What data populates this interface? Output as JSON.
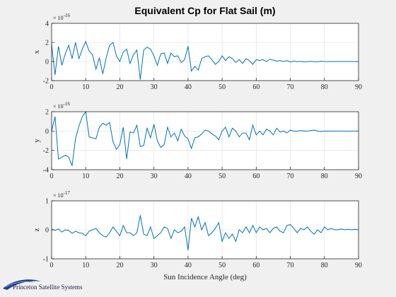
{
  "figure": {
    "title": "Equivalent Cp for Flat Sail (m)",
    "logo_text": "Princeton Satellite Systems",
    "colors": {
      "background": "#f0f0f0",
      "axes_bg": "#ffffff",
      "line": "#0072bd",
      "grid": "#dcdcdc",
      "axis": "#262626"
    }
  },
  "chart_data": [
    {
      "type": "line",
      "ylabel": "x",
      "xlabel": "",
      "exponent_text": "× 10",
      "exponent_power": "-16",
      "xlim": [
        0,
        90
      ],
      "ylim": [
        -2,
        4
      ],
      "xticks": [
        0,
        10,
        20,
        30,
        40,
        50,
        60,
        70,
        80,
        90
      ],
      "yticks": [
        -2,
        0,
        2,
        4
      ],
      "grid": true,
      "x": [
        0,
        1,
        2,
        3,
        4,
        5,
        6,
        7,
        8,
        9,
        10,
        11,
        12,
        13,
        14,
        15,
        16,
        17,
        18,
        19,
        20,
        21,
        22,
        23,
        24,
        25,
        26,
        27,
        28,
        29,
        30,
        31,
        32,
        33,
        34,
        35,
        36,
        37,
        38,
        39,
        40,
        41,
        42,
        43,
        44,
        45,
        46,
        47,
        48,
        49,
        50,
        51,
        52,
        53,
        54,
        55,
        56,
        57,
        58,
        59,
        60,
        61,
        62,
        63,
        64,
        65,
        66,
        67,
        68,
        69,
        70,
        71,
        72,
        73,
        74,
        75,
        76,
        77,
        78,
        79,
        80,
        81,
        82,
        83,
        84,
        85,
        86,
        87,
        88,
        89,
        90
      ],
      "values": [
        1.8,
        -1.4,
        1.6,
        -0.4,
        0.8,
        1.7,
        0.3,
        2.0,
        0.3,
        1.3,
        2.1,
        1.1,
        0.7,
        -0.8,
        0.4,
        -1.3,
        0.4,
        1.7,
        2.0,
        0.6,
        0.0,
        1.0,
        1.3,
        -0.2,
        0.7,
        1.2,
        -1.9,
        1.2,
        1.5,
        1.3,
        0.6,
        -0.4,
        0.8,
        0.9,
        -0.2,
        0.9,
        0.5,
        0.6,
        -0.1,
        0.2,
        1.6,
        -1.0,
        -0.5,
        -0.9,
        0.3,
        0.5,
        0.6,
        0.2,
        -0.3,
        0.0,
        0.6,
        0.1,
        0.5,
        0.3,
        -0.1,
        0.2,
        -0.2,
        0.3,
        0.1,
        -0.3,
        0.2,
        0.1,
        0.2,
        0.0,
        0.25,
        0.15,
        0.05,
        0.1,
        0.0,
        0.1,
        -0.05,
        0.05,
        -0.02,
        0.03,
        -0.05,
        0.0,
        0.02,
        -0.01,
        -0.02,
        0.03,
        0.0,
        -0.01,
        0.0,
        0.0,
        0.0,
        0.0,
        0.0,
        0.0,
        0.0,
        0.0,
        0.0
      ]
    },
    {
      "type": "line",
      "ylabel": "y",
      "xlabel": "",
      "exponent_text": "× 10",
      "exponent_power": "-16",
      "xlim": [
        0,
        90
      ],
      "ylim": [
        -4,
        2
      ],
      "xticks": [
        0,
        10,
        20,
        30,
        40,
        50,
        60,
        70,
        80,
        90
      ],
      "yticks": [
        -4,
        -2,
        0,
        2
      ],
      "grid": true,
      "x": [
        0,
        1,
        2,
        3,
        4,
        5,
        6,
        7,
        8,
        9,
        10,
        11,
        12,
        13,
        14,
        15,
        16,
        17,
        18,
        19,
        20,
        21,
        22,
        23,
        24,
        25,
        26,
        27,
        28,
        29,
        30,
        31,
        32,
        33,
        34,
        35,
        36,
        37,
        38,
        39,
        40,
        41,
        42,
        43,
        44,
        45,
        46,
        47,
        48,
        49,
        50,
        51,
        52,
        53,
        54,
        55,
        56,
        57,
        58,
        59,
        60,
        61,
        62,
        63,
        64,
        65,
        66,
        67,
        68,
        69,
        70,
        71,
        72,
        73,
        74,
        75,
        76,
        77,
        78,
        79,
        80,
        81,
        82,
        83,
        84,
        85,
        86,
        87,
        88,
        89,
        90
      ],
      "values": [
        0.0,
        1.5,
        -2.9,
        -2.7,
        -2.5,
        -2.7,
        -3.6,
        -0.8,
        0.5,
        1.5,
        2.0,
        -0.6,
        -0.7,
        -0.8,
        0.4,
        0.8,
        0.6,
        0.9,
        -1.1,
        -1.9,
        -1.4,
        0.4,
        -2.9,
        -0.1,
        -0.2,
        0.6,
        -1.6,
        -1.5,
        0.3,
        -0.7,
        0.7,
        -1.0,
        -1.7,
        -1.4,
        0.4,
        -0.6,
        -0.2,
        -1.0,
        0.2,
        -0.5,
        -0.8,
        -1.8,
        -0.7,
        -0.6,
        -0.3,
        0.1,
        0.0,
        -0.3,
        -0.5,
        -0.9,
        0.0,
        0.4,
        -0.6,
        0.3,
        0.0,
        -0.6,
        -0.2,
        -0.2,
        -0.9,
        0.6,
        -0.4,
        0.0,
        -0.4,
        0.2,
        0.0,
        -0.4,
        0.3,
        -0.1,
        0.0,
        -0.2,
        0.1,
        0.0,
        0.0,
        0.05,
        0.0,
        0.0,
        0.05,
        0.1,
        0.0,
        -0.05,
        0.0,
        0.0,
        0.0,
        0.0,
        0.0,
        0.0,
        0.0,
        0.0,
        0.0,
        0.0,
        0.0
      ]
    },
    {
      "type": "line",
      "ylabel": "z",
      "xlabel": "Sun Incidence Angle (deg)",
      "exponent_text": "× 10",
      "exponent_power": "-17",
      "xlim": [
        0,
        90
      ],
      "ylim": [
        -1,
        1
      ],
      "xticks": [
        0,
        10,
        20,
        30,
        40,
        50,
        60,
        70,
        80,
        90
      ],
      "yticks": [
        -1,
        0,
        1
      ],
      "grid": true,
      "x": [
        0,
        1,
        2,
        3,
        4,
        5,
        6,
        7,
        8,
        9,
        10,
        11,
        12,
        13,
        14,
        15,
        16,
        17,
        18,
        19,
        20,
        21,
        22,
        23,
        24,
        25,
        26,
        27,
        28,
        29,
        30,
        31,
        32,
        33,
        34,
        35,
        36,
        37,
        38,
        39,
        40,
        41,
        42,
        43,
        44,
        45,
        46,
        47,
        48,
        49,
        50,
        51,
        52,
        53,
        54,
        55,
        56,
        57,
        58,
        59,
        60,
        61,
        62,
        63,
        64,
        65,
        66,
        67,
        68,
        69,
        70,
        71,
        72,
        73,
        74,
        75,
        76,
        77,
        78,
        79,
        80,
        81,
        82,
        83,
        84,
        85,
        86,
        87,
        88,
        89,
        90
      ],
      "values": [
        0.02,
        -0.02,
        0.03,
        -0.08,
        0.0,
        -0.02,
        -0.12,
        -0.05,
        -0.1,
        -0.12,
        -0.2,
        -0.05,
        0.0,
        0.05,
        -0.1,
        -0.2,
        -0.25,
        -0.1,
        0.1,
        -0.05,
        -0.2,
        0.15,
        -0.1,
        -0.1,
        -0.2,
        -0.1,
        0.5,
        -0.15,
        -0.2,
        0.1,
        -0.3,
        -0.2,
        -0.1,
        0.1,
        0.05,
        -0.3,
        0.0,
        -0.1,
        -0.05,
        0.1,
        -0.7,
        0.4,
        0.1,
        0.45,
        0.0,
        0.25,
        -0.2,
        -0.1,
        0.05,
        0.25,
        -0.4,
        -0.1,
        -0.3,
        -0.15,
        -0.4,
        0.0,
        -0.1,
        0.1,
        -0.1,
        0.15,
        -0.1,
        0.1,
        0.0,
        0.05,
        -0.1,
        0.05,
        0.1,
        -0.05,
        -0.1,
        0.15,
        0.18,
        0.05,
        -0.1,
        0.05,
        0.0,
        0.1,
        -0.05,
        -0.15,
        0.0,
        -0.1,
        0.1,
        0.0,
        0.05,
        0.0,
        0.0,
        0.03,
        0.0,
        0.02,
        0.0,
        0.02,
        0.0
      ]
    }
  ]
}
